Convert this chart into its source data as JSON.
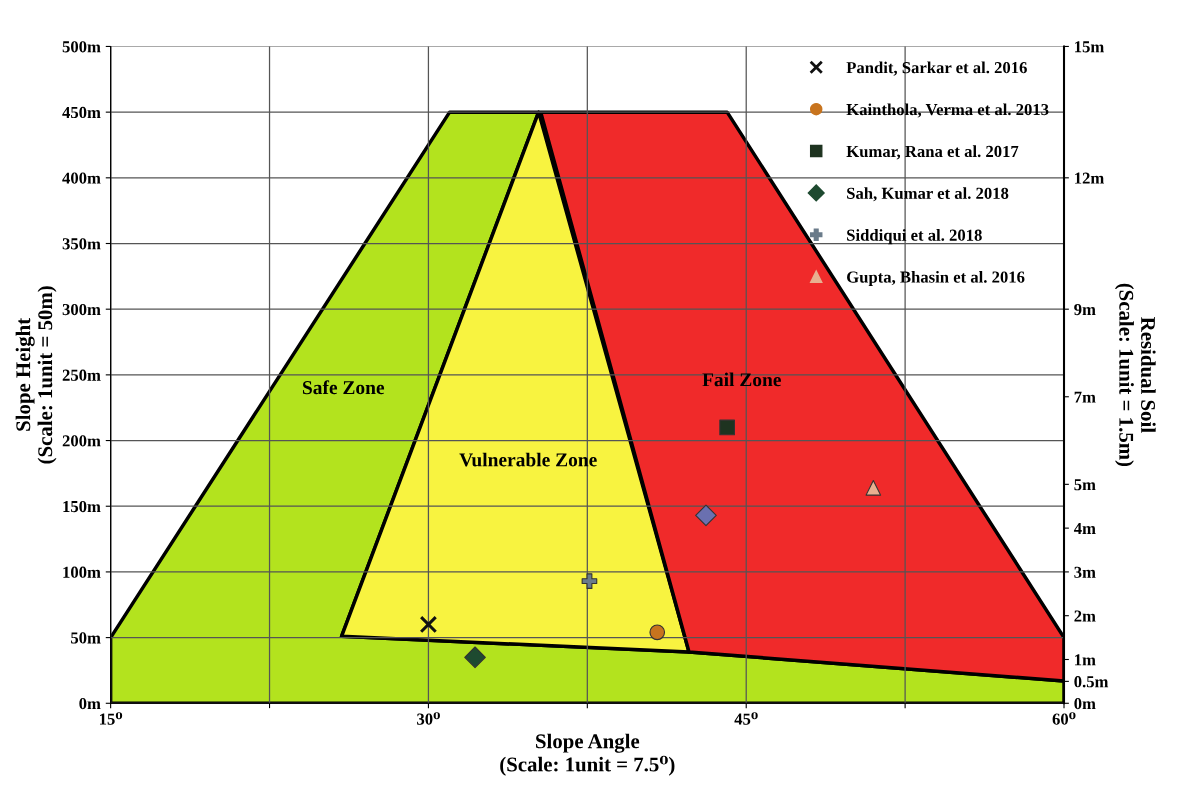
{
  "chart_data": {
    "type": "scatter",
    "xlabel": "Slope Angle\n(Scale: 1unit = 7.5⁰)",
    "ylabel": "Slope Height\n(Scale: 1unit = 50m)",
    "y2label": "Residual Soil\n(Scale: 1unit = 1.5m)",
    "xlim": [
      15,
      60
    ],
    "xticks": [
      {
        "value": 15,
        "label": "15⁰"
      },
      {
        "value": 22.5,
        "label": null
      },
      {
        "value": 30,
        "label": "30⁰"
      },
      {
        "value": 37.5,
        "label": null
      },
      {
        "value": 45,
        "label": "45⁰"
      },
      {
        "value": 52.5,
        "label": null
      },
      {
        "value": 60,
        "label": "60⁰"
      }
    ],
    "ylim": [
      0,
      500
    ],
    "yticks": [
      {
        "value": 0,
        "label": "0m"
      },
      {
        "value": 50,
        "label": "50m"
      },
      {
        "value": 100,
        "label": "100m"
      },
      {
        "value": 150,
        "label": "150m"
      },
      {
        "value": 200,
        "label": "200m"
      },
      {
        "value": 250,
        "label": "250m"
      },
      {
        "value": 300,
        "label": "300m"
      },
      {
        "value": 350,
        "label": "350m"
      },
      {
        "value": 400,
        "label": "400m"
      },
      {
        "value": 450,
        "label": "450m"
      },
      {
        "value": 500,
        "label": "500m"
      }
    ],
    "y2lim": [
      0,
      15
    ],
    "y2ticks": [
      {
        "value": 0,
        "label": "0m"
      },
      {
        "value": 0.5,
        "label": "0.5m"
      },
      {
        "value": 1,
        "label": "1m"
      },
      {
        "value": 2,
        "label": "2m"
      },
      {
        "value": 3,
        "label": "3m"
      },
      {
        "value": 4,
        "label": "4m"
      },
      {
        "value": 5,
        "label": "5m"
      },
      {
        "value": 7,
        "label": "7m"
      },
      {
        "value": 9,
        "label": "9m"
      },
      {
        "value": 12,
        "label": "12m"
      },
      {
        "value": 15,
        "label": "15m"
      }
    ],
    "grid": true,
    "legend": "top right",
    "series": [
      {
        "type": "area",
        "color": "#b3e31e",
        "x": [
          15,
          15,
          31,
          35.2,
          25.9,
          42.3,
          60,
          60
        ],
        "values": [
          0,
          50,
          450,
          450,
          51,
          39,
          17,
          0
        ]
      },
      {
        "type": "area",
        "color": "#f8f340",
        "x": [
          35.2,
          25.9,
          42.3
        ],
        "values": [
          450,
          51,
          39
        ]
      },
      {
        "type": "area",
        "color": "#f02a2a",
        "x": [
          35.3,
          44.1,
          60,
          60,
          42.3
        ],
        "values": [
          450,
          450,
          50,
          17,
          39
        ]
      },
      {
        "name": "Pandit, Sarkar et al. 2016",
        "marker": "cross",
        "color": "#111111",
        "x": [
          30
        ],
        "values": [
          60
        ]
      },
      {
        "name": "Kainthola, Verma et al. 2013",
        "marker": "circle",
        "color": "#c8741e",
        "x": [
          40.8
        ],
        "values": [
          54
        ]
      },
      {
        "name": "Kumar, Rana et al. 2017",
        "marker": "square",
        "color": "#1e3320",
        "x": [
          44.1
        ],
        "values": [
          210
        ]
      },
      {
        "name": "Sah, Kumar et al. 2018",
        "marker": "diamond",
        "colors": [
          "#1e4a30",
          "#6a70b0"
        ],
        "x": [
          32.2,
          43.1
        ],
        "values": [
          35,
          143
        ]
      },
      {
        "name": "Siddiqui et al. 2018",
        "marker": "plus",
        "color": "#6a7b8a",
        "x": [
          37.6
        ],
        "values": [
          93
        ]
      },
      {
        "name": "Gupta, Bhasin et al. 2016",
        "marker": "triangle",
        "color": "#e8b090",
        "x": [
          51
        ],
        "values": [
          164
        ]
      }
    ],
    "annotations": [
      "Safe Zone",
      "Vulnerable Zone",
      "Fail Zone"
    ]
  }
}
